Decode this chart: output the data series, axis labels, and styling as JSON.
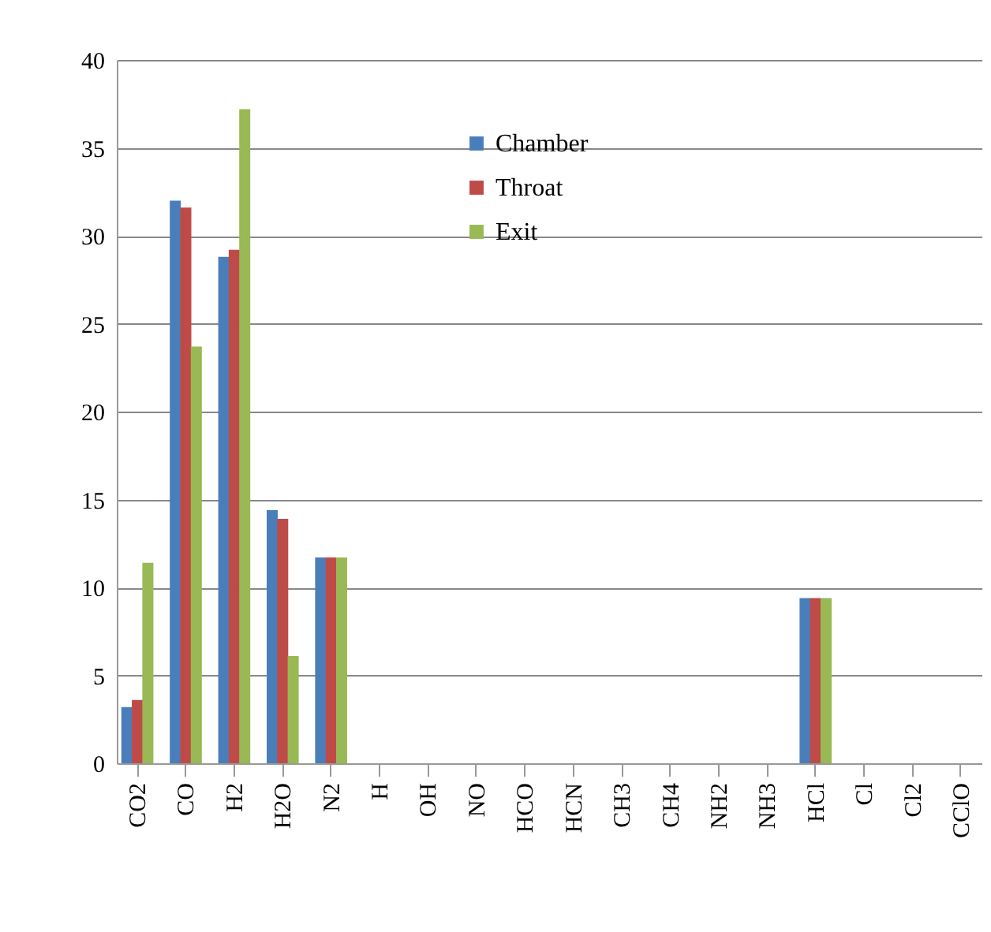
{
  "chart_data": {
    "type": "bar",
    "categories": [
      "CO2",
      "CO",
      "H2",
      "H2O",
      "N2",
      "H",
      "OH",
      "NO",
      "HCO",
      "HCN",
      "CH3",
      "CH4",
      "NH2",
      "NH3",
      "HCl",
      "Cl",
      "Cl2",
      "CClO"
    ],
    "series": [
      {
        "name": "Chamber",
        "color": "#4a7ebb",
        "values": [
          3.2,
          32.0,
          28.8,
          14.4,
          11.7,
          0,
          0,
          0,
          0,
          0,
          0,
          0,
          0,
          0,
          9.4,
          0,
          0,
          0
        ]
      },
      {
        "name": "Throat",
        "color": "#be4b48",
        "values": [
          3.6,
          31.6,
          29.2,
          13.9,
          11.7,
          0,
          0,
          0,
          0,
          0,
          0,
          0,
          0,
          0,
          9.4,
          0,
          0,
          0
        ]
      },
      {
        "name": "Exit",
        "color": "#98b954",
        "values": [
          11.4,
          23.7,
          37.2,
          6.1,
          11.7,
          0,
          0,
          0,
          0,
          0,
          0,
          0,
          0,
          0,
          9.4,
          0,
          0,
          0
        ]
      }
    ],
    "ylim": [
      0,
      40
    ],
    "yticks": [
      0,
      5,
      10,
      15,
      20,
      25,
      30,
      35,
      40
    ],
    "grid": "y",
    "legend": "top right"
  }
}
